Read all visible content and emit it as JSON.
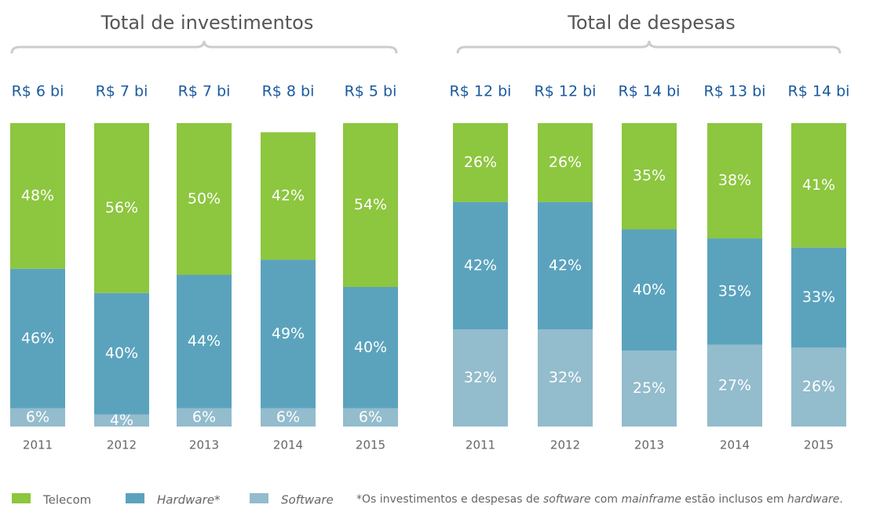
{
  "chart_data": [
    {
      "type": "stacked_bar",
      "title": "Total de investimentos",
      "categories": [
        "2011",
        "2012",
        "2013",
        "2014",
        "2015"
      ],
      "total_labels": [
        "R$ 6 bi",
        "R$ 7 bi",
        "R$ 7 bi",
        "R$ 8 bi",
        "R$ 5 bi"
      ],
      "ylim": [
        0,
        100
      ],
      "series": [
        {
          "name": "Software",
          "color": "#93bccd",
          "values": [
            6,
            4,
            6,
            6,
            6
          ],
          "value_labels": [
            "6%",
            "4%",
            "6%",
            "6%",
            "6%"
          ]
        },
        {
          "name": "Hardware*",
          "color": "#5ba3bd",
          "values": [
            46,
            40,
            44,
            49,
            40
          ],
          "value_labels": [
            "46%",
            "40%",
            "44%",
            "49%",
            "40%"
          ]
        },
        {
          "name": "Telecom",
          "color": "#8dc63f",
          "values": [
            48,
            56,
            50,
            42,
            54
          ],
          "value_labels": [
            "48%",
            "56%",
            "50%",
            "42%",
            "54%"
          ]
        }
      ]
    },
    {
      "type": "stacked_bar",
      "title": "Total de despesas",
      "categories": [
        "2011",
        "2012",
        "2013",
        "2014",
        "2015"
      ],
      "total_labels": [
        "R$ 12 bi",
        "R$ 12 bi",
        "R$ 14 bi",
        "R$ 13 bi",
        "R$ 14 bi"
      ],
      "ylim": [
        0,
        100
      ],
      "series": [
        {
          "color": "#93bccd",
          "values": [
            32,
            32,
            25,
            27,
            26
          ],
          "value_labels": [
            "32%",
            "32%",
            "25%",
            "27%",
            "26%"
          ]
        },
        {
          "color": "#5ba3bd",
          "values": [
            42,
            42,
            40,
            35,
            33
          ],
          "value_labels": [
            "42%",
            "42%",
            "40%",
            "35%",
            "33%"
          ]
        },
        {
          "color": "#8dc63f",
          "values": [
            26,
            26,
            35,
            38,
            41
          ],
          "value_labels": [
            "26%",
            "26%",
            "35%",
            "38%",
            "41%"
          ]
        }
      ]
    }
  ],
  "footnote": [
    "*Os investimentos e despesas de ",
    "software",
    " com ",
    "mainframe",
    " estão inclusos em ",
    "hardware",
    "."
  ]
}
